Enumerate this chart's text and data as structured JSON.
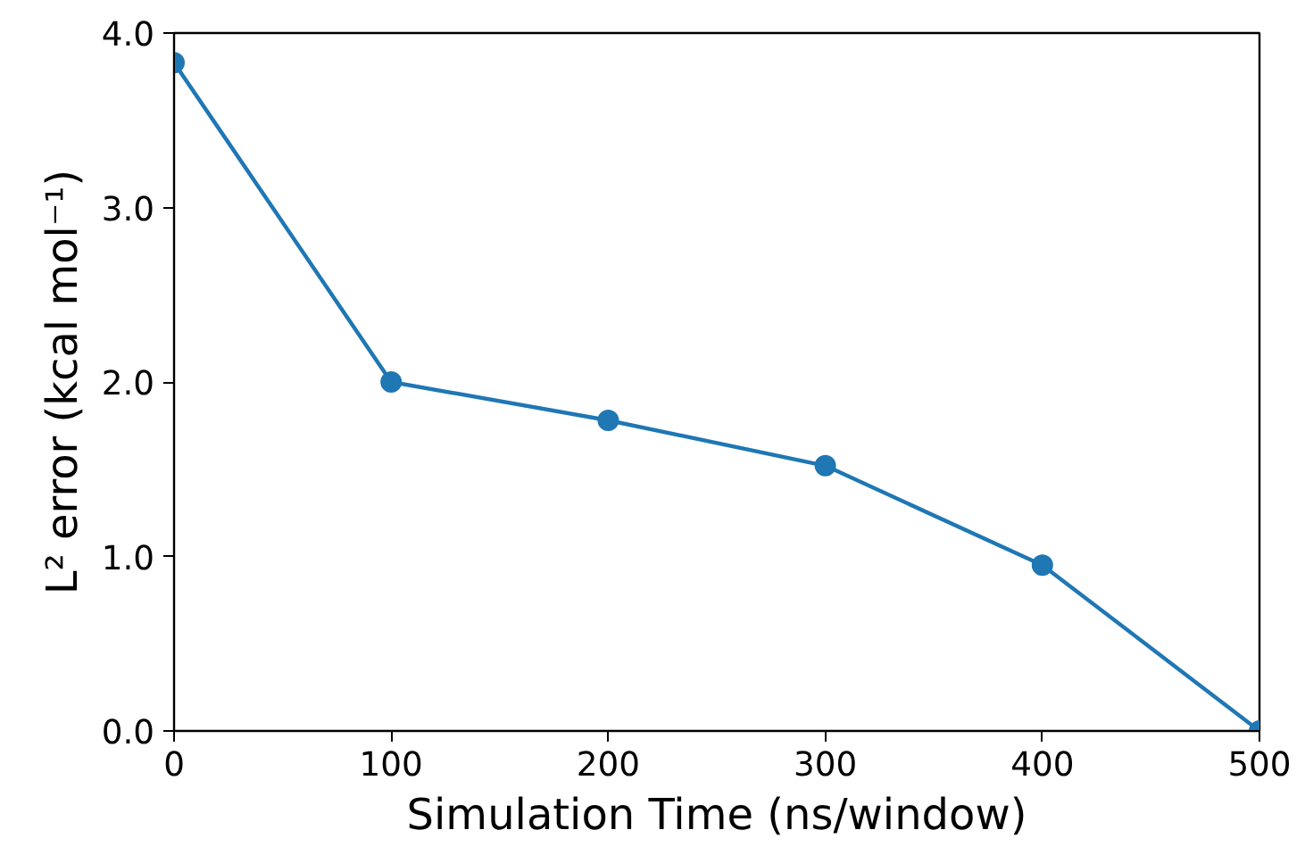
{
  "chart_data": {
    "type": "line",
    "xlabel": "Simulation Time (ns/window)",
    "ylabel": "L² error (kcal mol⁻¹)",
    "x": [
      0,
      100,
      200,
      300,
      400,
      500
    ],
    "series": [
      {
        "color": "#1f77b4",
        "values": [
          3.83,
          2.0,
          1.78,
          1.52,
          0.95,
          0.0
        ]
      }
    ],
    "xlim": [
      0,
      500
    ],
    "ylim": [
      0,
      4.0
    ],
    "xticks": [
      0,
      100,
      200,
      300,
      400,
      500
    ],
    "yticks": [
      {
        "value": 0,
        "label": "0.0"
      },
      {
        "value": 1,
        "label": "1.0"
      },
      {
        "value": 2,
        "label": "2.0"
      },
      {
        "value": 3,
        "label": "3.0"
      },
      {
        "value": 4,
        "label": "4.0"
      }
    ],
    "grid": false,
    "marker": "circle",
    "line_style": "solid"
  }
}
